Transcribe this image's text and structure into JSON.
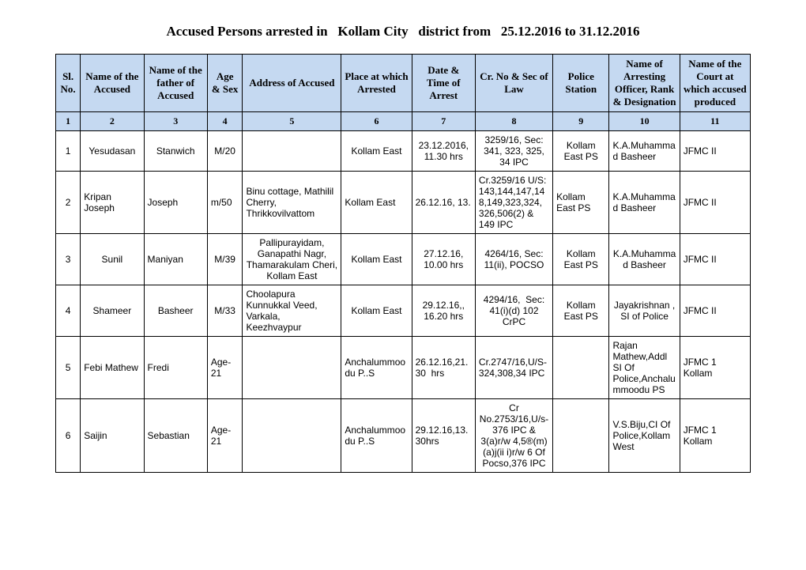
{
  "title": "Accused Persons arrested in   Kollam City   district from   25.12.2016 to 31.12.2016",
  "headers": [
    "Sl. No.",
    "Name of the Accused",
    "Name of the father of Accused",
    "Age & Sex",
    "Address of Accused",
    "Place at which Arrested",
    "Date & Time of Arrest",
    "Cr. No & Sec of Law",
    "Police Station",
    "Name of Arresting Officer, Rank & Designation",
    "Name of the Court at which accused produced"
  ],
  "numrow": [
    "1",
    "2",
    "3",
    "4",
    "5",
    "6",
    "7",
    "8",
    "9",
    "10",
    "11"
  ],
  "rows": [
    {
      "sl": "1",
      "name": "Yesudasan",
      "father": "Stanwich",
      "age": "M/20",
      "addr": "",
      "place": "Kollam East",
      "date": "23.12.2016, 11.30 hrs",
      "crno": "3259/16, Sec: 341, 323, 325, 34 IPC",
      "ps": "Kollam East PS",
      "officer": "K.A.Muhammad Basheer",
      "court": "JFMC II",
      "align": {
        "sl": "center",
        "name": "center",
        "father": "center",
        "age": "center",
        "addr": "left",
        "place": "center",
        "date": "center",
        "crno": "center",
        "ps": "center",
        "officer": "left",
        "court": "left"
      }
    },
    {
      "sl": "2",
      "name": "Kripan Joseph",
      "father": "Joseph",
      "age": "m/50",
      "addr": "Binu cottage, Mathilil Cherry, Thrikkovilvattom",
      "place": "Kollam East",
      "date": "26.12.16, 13.",
      "crno": "Cr.3259/16 U/S: 143,144,147,14 8,149,323,324, 326,506(2) & 149 IPC",
      "ps": "Kollam East PS",
      "officer": "K.A.Muhammad Basheer",
      "court": "JFMC II",
      "align": {
        "sl": "center",
        "name": "left",
        "father": "left",
        "age": "left",
        "addr": "left",
        "place": "left",
        "date": "left",
        "crno": "left",
        "ps": "left",
        "officer": "left",
        "court": "left"
      }
    },
    {
      "sl": "3",
      "name": "Sunil",
      "father": "Maniyan",
      "age": "M/39",
      "addr": "Pallipurayidam, Ganapathi Nagr, Thamarakulam Cheri, Kollam East",
      "place": "Kollam East",
      "date": "27.12.16, 10.00 hrs",
      "crno": "4264/16, Sec: 11(ii), POCSO",
      "ps": "Kollam East PS",
      "officer": "K.A.Muhammad Basheer",
      "court": "JFMC II",
      "align": {
        "sl": "center",
        "name": "center",
        "father": "left",
        "age": "center",
        "addr": "center",
        "place": "center",
        "date": "center",
        "crno": "center",
        "ps": "center",
        "officer": "center",
        "court": "left"
      }
    },
    {
      "sl": "4",
      "name": "Shameer",
      "father": "Basheer",
      "age": "M/33",
      "addr": "Choolapura Kunnukkal Veed, Varkala, Keezhvaypur",
      "place": "Kollam East",
      "date": "29.12.16,, 16.20 hrs",
      "crno": "4294/16,  Sec: 41(i)(d) 102 CrPC",
      "ps": "Kollam East PS",
      "officer": "Jayakrishnan , SI of Police",
      "court": "JFMC II",
      "align": {
        "sl": "center",
        "name": "center",
        "father": "center",
        "age": "center",
        "addr": "left",
        "place": "center",
        "date": "center",
        "crno": "center",
        "ps": "center",
        "officer": "center",
        "court": "left"
      }
    },
    {
      "sl": "5",
      "name": "Febi Mathew",
      "father": "Fredi",
      "age": "Age-21",
      "addr": "",
      "place": "Anchalummoodu P..S",
      "date": "26.12.16,21.30  hrs",
      "crno": "Cr.2747/16,U/S-324,308,34 IPC",
      "ps": "",
      "officer": "Rajan Mathew,Addl SI Of Police,Anchalummoodu PS",
      "court": "JFMC 1 Kollam",
      "align": {
        "sl": "center",
        "name": "left",
        "father": "left",
        "age": "left",
        "addr": "left",
        "place": "left",
        "date": "left",
        "crno": "left",
        "ps": "left",
        "officer": "left",
        "court": "left"
      }
    },
    {
      "sl": "6",
      "name": "Saijin",
      "father": "Sebastian",
      "age": "Age-21",
      "addr": "",
      "place": "Anchalummoodu P..S",
      "date": "29.12.16,13.30hrs",
      "crno": "Cr No.2753/16,U/s-376 IPC & 3(a)r/w 4,5®(m)(a)j(ii i)r/w 6 Of Pocso,376 IPC",
      "ps": "",
      "officer": "V.S.Biju,CI Of Police,Kollam West",
      "court": "JFMC 1 Kollam",
      "align": {
        "sl": "center",
        "name": "left",
        "father": "left",
        "age": "left",
        "addr": "left",
        "place": "left",
        "date": "left",
        "crno": "center",
        "ps": "left",
        "officer": "left",
        "court": "left"
      }
    }
  ]
}
